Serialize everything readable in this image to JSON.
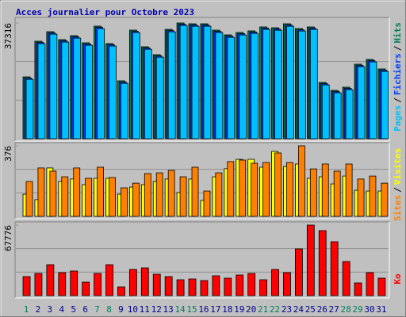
{
  "chart_data": [
    {
      "type": "bar",
      "title": "Acces journalier pour Octobre 2023",
      "ylim": [
        0,
        37316
      ],
      "yticks": [
        37316
      ],
      "legend_separator": "/",
      "series": [
        {
          "name": "Hits",
          "color": "#00805c",
          "values": [
            19935,
            31437,
            34504,
            31949,
            33226,
            30926,
            36293,
            30670,
            18658,
            35015,
            29648,
            27092,
            35271,
            37316,
            37060,
            37060,
            35015,
            33482,
            34249,
            34760,
            36038,
            35782,
            37060,
            35527,
            36038,
            18147,
            15591,
            16613,
            24026,
            25559,
            22492
          ]
        },
        {
          "name": "Fichiers",
          "color": "#0040ff",
          "values": [
            19535,
            31037,
            34104,
            31549,
            32826,
            30526,
            35893,
            30270,
            18258,
            34615,
            29248,
            26692,
            34871,
            36916,
            36660,
            36660,
            34615,
            33082,
            33849,
            34360,
            35638,
            35382,
            36660,
            35127,
            35638,
            17747,
            15191,
            16213,
            23626,
            25159,
            22092
          ]
        },
        {
          "name": "Pages",
          "color": "#00c0ff",
          "values": [
            19135,
            30637,
            33704,
            31149,
            32426,
            30126,
            35493,
            29870,
            17858,
            34215,
            28848,
            26292,
            34471,
            36516,
            36260,
            36260,
            34215,
            32682,
            33449,
            33960,
            35238,
            34982,
            36260,
            34727,
            35238,
            17347,
            14791,
            15813,
            23226,
            24759,
            21692
          ]
        }
      ]
    },
    {
      "type": "bar",
      "ylim": [
        0,
        376
      ],
      "yticks": [
        376
      ],
      "legend_separator": "/",
      "series": [
        {
          "name": "Visites",
          "color": "#ffff00",
          "values": [
            118,
            89,
            258,
            186,
            199,
            169,
            203,
            203,
            118,
            156,
            169,
            186,
            199,
            127,
            199,
            85,
            211,
            254,
            304,
            304,
            262,
            346,
            266,
            279,
            203,
            211,
            173,
            215,
            139,
            135,
            135
          ]
        },
        {
          "name": "Sites",
          "color": "#ff8000",
          "values": [
            186,
            258,
            241,
            211,
            258,
            203,
            262,
            207,
            152,
            177,
            228,
            232,
            245,
            211,
            262,
            135,
            232,
            292,
            300,
            283,
            287,
            338,
            287,
            376,
            253,
            279,
            241,
            279,
            199,
            215,
            177
          ]
        }
      ]
    },
    {
      "type": "bar",
      "ylim": [
        0,
        67776
      ],
      "yticks": [
        67776
      ],
      "categories": [
        "1",
        "2",
        "3",
        "4",
        "5",
        "6",
        "7",
        "8",
        "9",
        "10",
        "11",
        "12",
        "13",
        "14",
        "15",
        "16",
        "17",
        "18",
        "19",
        "20",
        "21",
        "22",
        "23",
        "24",
        "25",
        "26",
        "27",
        "28",
        "29",
        "30",
        "31"
      ],
      "category_colors": [
        "#00805c",
        "#00008b",
        "#00008b",
        "#00008b",
        "#00008b",
        "#00008b",
        "#00805c",
        "#00805c",
        "#00008b",
        "#00008b",
        "#00008b",
        "#00008b",
        "#00008b",
        "#00805c",
        "#00805c",
        "#00008b",
        "#00008b",
        "#00008b",
        "#00008b",
        "#00008b",
        "#00805c",
        "#00805c",
        "#00008b",
        "#00008b",
        "#00008b",
        "#00008b",
        "#00008b",
        "#00805c",
        "#00805c",
        "#00008b",
        "#00008b"
      ],
      "series": [
        {
          "name": "Ko",
          "color": "#ff0000",
          "values": [
            18276,
            21322,
            29699,
            22084,
            23607,
            12946,
            21322,
            29699,
            8377,
            25130,
            26653,
            20561,
            18276,
            15230,
            15992,
            14469,
            19038,
            16753,
            19799,
            21322,
            15230,
            25130,
            22084,
            44929,
            67776,
            62444,
            51782,
            32745,
            12184,
            22084,
            16753
          ]
        }
      ]
    }
  ]
}
